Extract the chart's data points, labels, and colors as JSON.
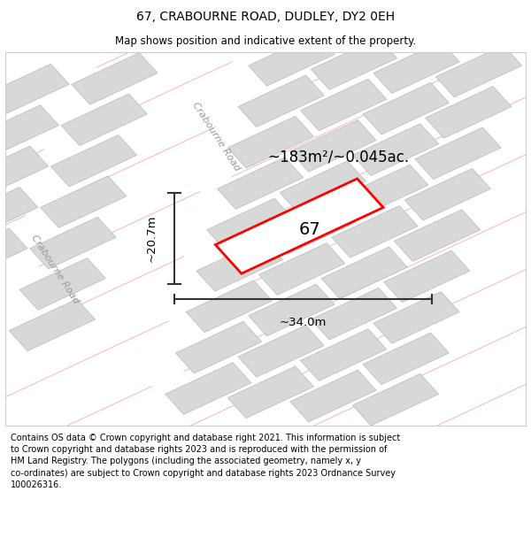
{
  "title": "67, CRABOURNE ROAD, DUDLEY, DY2 0EH",
  "subtitle": "Map shows position and indicative extent of the property.",
  "footer": "Contains OS data © Crown copyright and database right 2021. This information is subject\nto Crown copyright and database rights 2023 and is reproduced with the permission of\nHM Land Registry. The polygons (including the associated geometry, namely x, y\nco-ordinates) are subject to Crown copyright and database rights 2023 Ordnance Survey\n100026316.",
  "road_line_color": "#f0b0b0",
  "building_color": "#d8d8d8",
  "building_edge": "#c0c0c0",
  "highlight_color": "#ff0000",
  "area_text": "~183m²/~0.045ac.",
  "number_text": "67",
  "width_text": "~34.0m",
  "height_text": "~20.7m",
  "road_label_upper": "Crabourne Road",
  "road_label_lower": "Crabourne Road",
  "map_bg": "#f5f5f5",
  "road_bg": "#ffffff",
  "title_fontsize": 10,
  "subtitle_fontsize": 8.5,
  "footer_fontsize": 7
}
